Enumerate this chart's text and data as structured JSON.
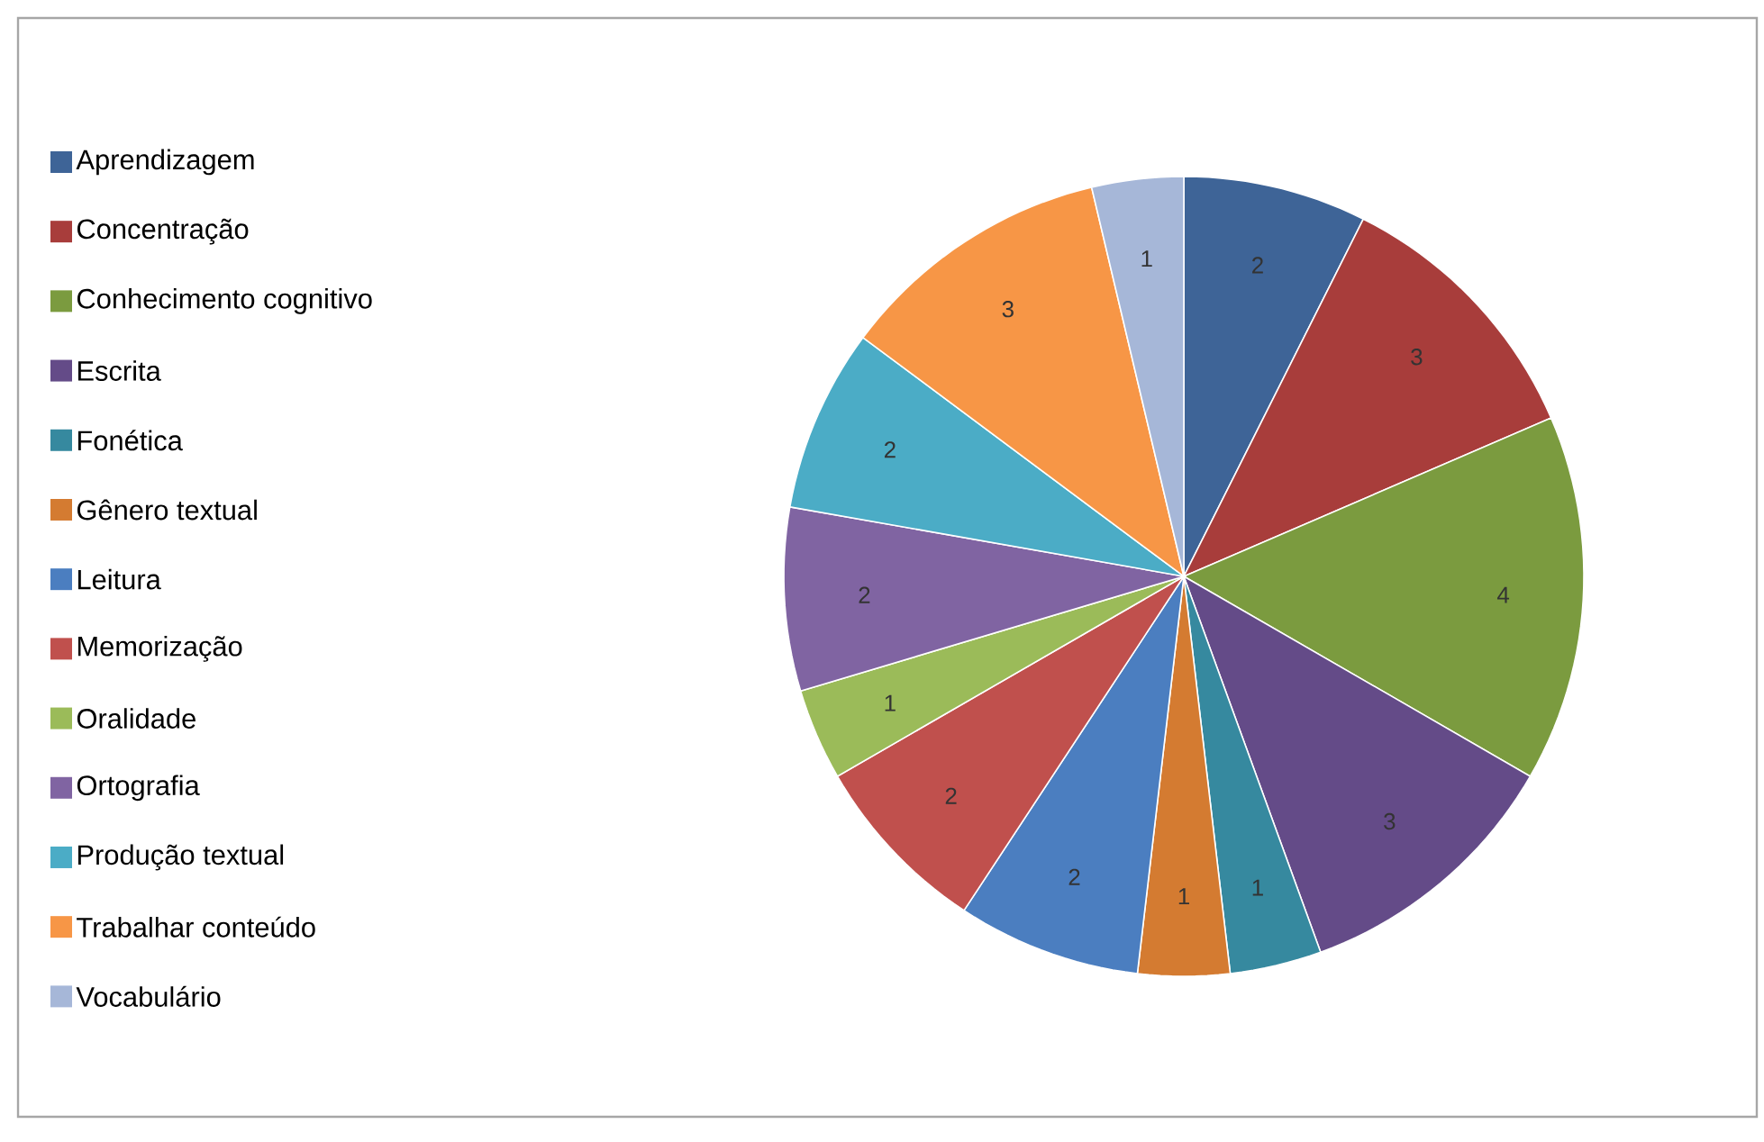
{
  "chart_data": {
    "type": "pie",
    "categories": [
      "Aprendizagem",
      "Concentração",
      "Conhecimento cognitivo",
      "Escrita",
      "Fonética",
      "Gênero textual",
      "Leitura",
      "Memorização",
      "Oralidade",
      "Ortografia",
      "Produção textual",
      "Trabalhar conteúdo",
      "Vocabulário"
    ],
    "values": [
      2,
      3,
      4,
      3,
      1,
      1,
      2,
      2,
      1,
      2,
      2,
      3,
      1
    ],
    "colors": [
      "#3e6497",
      "#a83d3b",
      "#7b9b3f",
      "#644b88",
      "#36899f",
      "#d47b31",
      "#4b7ec0",
      "#c0504d",
      "#9bbb59",
      "#8064a2",
      "#4bacc6",
      "#f79646",
      "#a6b7d8"
    ],
    "data_labels": true,
    "legend": "left"
  }
}
